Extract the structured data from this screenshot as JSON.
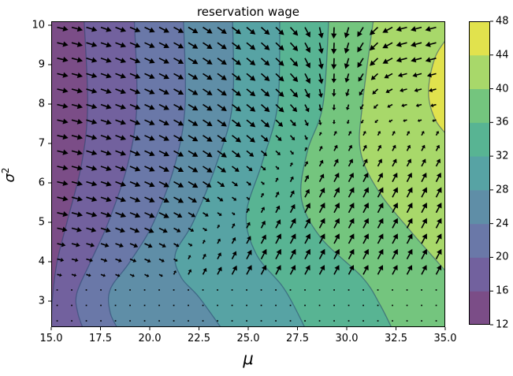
{
  "figure": {
    "title": "reservation wage",
    "background": "#ffffff"
  },
  "axes": {
    "xlabel": "μ",
    "ylabel_base": "σ",
    "ylabel_exp": "2",
    "x_tick_labels": [
      "15.0",
      "17.5",
      "20.0",
      "22.5",
      "25.0",
      "27.5",
      "30.0",
      "32.5",
      "35.0"
    ],
    "x_tick_values": [
      15,
      17.5,
      20,
      22.5,
      25,
      27.5,
      30,
      32.5,
      35
    ],
    "y_tick_labels": [
      "3",
      "4",
      "5",
      "6",
      "7",
      "8",
      "9",
      "10"
    ],
    "y_tick_values": [
      3,
      4,
      5,
      6,
      7,
      8,
      9,
      10
    ],
    "x_range": [
      15,
      35
    ],
    "y_range": [
      2.34,
      10.1
    ]
  },
  "chart_data": {
    "type": "heatmap",
    "subtype": "filled-contour-with-quiver",
    "title": "reservation wage",
    "xlabel": "μ",
    "ylabel": "σ²",
    "xlim": [
      15,
      35
    ],
    "ylim": [
      2.34,
      10.1
    ],
    "levels": [
      12,
      16,
      20,
      24,
      28,
      32,
      36,
      40,
      44,
      48
    ],
    "band_colors": [
      "#7b4d87",
      "#72619e",
      "#6a78a8",
      "#5f8ea7",
      "#57a3a4",
      "#58b493",
      "#74c57e",
      "#a8d86a",
      "#e1e24d"
    ],
    "contour_line_color": "rgba(40,70,110,0.55)",
    "boundaries": [
      {
        "level": 16,
        "points": [
          [
            10.3,
            16.65
          ],
          [
            8,
            16.85
          ],
          [
            6.5,
            16.55
          ],
          [
            5,
            15.8
          ],
          [
            4,
            15.3
          ],
          [
            3,
            15.05
          ],
          [
            2.2,
            15.0
          ]
        ]
      },
      {
        "level": 20,
        "points": [
          [
            10.3,
            19.2
          ],
          [
            8,
            19.35
          ],
          [
            6.5,
            18.9
          ],
          [
            5,
            17.9
          ],
          [
            4,
            17.0
          ],
          [
            3.2,
            16.3
          ],
          [
            2.7,
            16.35
          ],
          [
            2.2,
            16.7
          ]
        ]
      },
      {
        "level": 24,
        "points": [
          [
            10.3,
            21.7
          ],
          [
            8,
            21.8
          ],
          [
            6.5,
            21.3
          ],
          [
            5,
            20.2
          ],
          [
            4,
            19.0
          ],
          [
            3.3,
            18.0
          ],
          [
            2.7,
            18.0
          ],
          [
            2.2,
            18.5
          ]
        ]
      },
      {
        "level": 28,
        "points": [
          [
            10.3,
            24.2
          ],
          [
            8,
            24.2
          ],
          [
            6.5,
            23.4
          ],
          [
            5,
            22.2
          ],
          [
            4.2,
            21.3
          ],
          [
            3.6,
            21.6
          ],
          [
            3.1,
            22.5
          ],
          [
            2.2,
            23.8
          ]
        ]
      },
      {
        "level": 32,
        "points": [
          [
            10.3,
            26.6
          ],
          [
            8,
            26.5
          ],
          [
            6.5,
            25.7
          ],
          [
            5.2,
            24.9
          ],
          [
            4.2,
            25.4
          ],
          [
            3.4,
            26.7
          ],
          [
            2.9,
            27.3
          ],
          [
            2.2,
            28.0
          ]
        ]
      },
      {
        "level": 36,
        "points": [
          [
            10.3,
            29.1
          ],
          [
            8,
            28.8
          ],
          [
            6.8,
            28.0
          ],
          [
            5.6,
            27.7
          ],
          [
            4.6,
            28.7
          ],
          [
            3.6,
            30.8
          ],
          [
            2.9,
            31.7
          ],
          [
            2.2,
            32.4
          ]
        ]
      },
      {
        "level": 40,
        "points": [
          [
            10.3,
            31.4
          ],
          [
            8,
            30.8
          ],
          [
            6.8,
            30.7
          ],
          [
            5.8,
            31.6
          ],
          [
            4.8,
            33.2
          ],
          [
            4.0,
            34.6
          ],
          [
            3.6,
            35.3
          ]
        ]
      }
    ],
    "closed_region": {
      "level": 44,
      "points": [
        [
          9.8,
          35.3
        ],
        [
          9.2,
          34.5
        ],
        [
          8.3,
          34.15
        ],
        [
          7.6,
          34.5
        ],
        [
          7.1,
          35.3
        ]
      ]
    },
    "quiver": {
      "color": "#000000",
      "cols": 27,
      "mu_start": 15.3,
      "mu_step": 0.74,
      "rows": 20,
      "sig_start": 2.5,
      "sig_step": 0.392,
      "line_base": 3.35,
      "line_slope": 0.45,
      "line_start_mu": 20,
      "line_cap": 7.5,
      "angle_left": -12,
      "angle_mid": -45,
      "angle_right": -165,
      "angle_below": 62,
      "dot_cutoff": 3.35,
      "dot_band": 0.35,
      "max_len": 14.5
    },
    "colorbar": {
      "tick_labels": [
        "12",
        "16",
        "20",
        "24",
        "28",
        "32",
        "36",
        "40",
        "44",
        "48"
      ],
      "tick_values": [
        12,
        16,
        20,
        24,
        28,
        32,
        36,
        40,
        44,
        48
      ]
    },
    "legend": "colorbar-right",
    "grid": false
  }
}
